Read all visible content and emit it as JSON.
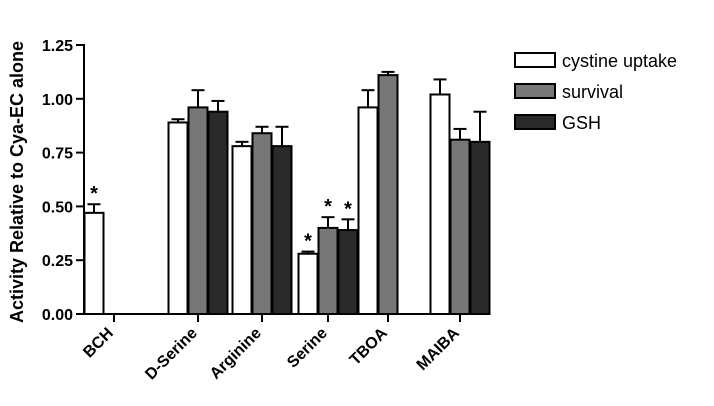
{
  "chart_data": {
    "type": "bar",
    "title": "",
    "xlabel": "",
    "ylabel": "Activity Relative to Cya-EC alone",
    "ylim": [
      0,
      1.25
    ],
    "yticks": [
      0.0,
      0.25,
      0.5,
      0.75,
      1.0,
      1.25
    ],
    "ytick_labels": [
      "0.00",
      "0.25",
      "0.50",
      "0.75",
      "1.00",
      "1.25"
    ],
    "categories": [
      "BCH",
      "D-Serine",
      "Arginine",
      "Serine",
      "TBOA",
      "MAIBA"
    ],
    "legend_position": "right",
    "grid": false,
    "series": [
      {
        "name": "cystine uptake",
        "color": "#ffffff",
        "values": [
          0.47,
          0.89,
          0.78,
          0.28,
          0.96,
          1.02
        ],
        "errors": [
          0.04,
          0.015,
          0.02,
          0.01,
          0.08,
          0.07
        ],
        "significance": [
          "*",
          "",
          "",
          "*",
          "",
          ""
        ]
      },
      {
        "name": "survival",
        "color": "#777777",
        "values": [
          null,
          0.96,
          0.84,
          0.4,
          1.11,
          0.81
        ],
        "errors": [
          null,
          0.08,
          0.03,
          0.05,
          0.015,
          0.05
        ],
        "significance": [
          "",
          "",
          "",
          "*",
          "",
          ""
        ]
      },
      {
        "name": "GSH",
        "color": "#2a2a2a",
        "values": [
          null,
          0.94,
          0.78,
          0.39,
          null,
          0.8
        ],
        "errors": [
          null,
          0.05,
          0.09,
          0.05,
          null,
          0.14
        ],
        "significance": [
          "",
          "",
          "",
          "*",
          "",
          ""
        ]
      }
    ]
  }
}
